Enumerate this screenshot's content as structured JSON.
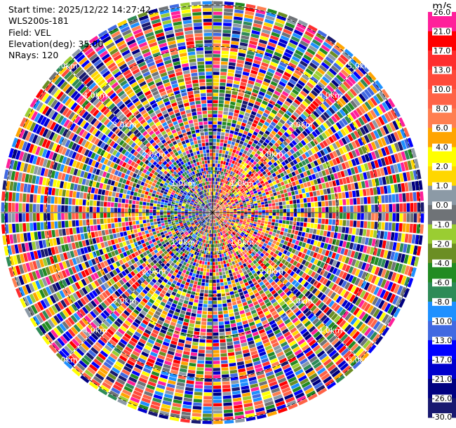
{
  "info": {
    "start_time": "Start time: 2025/12/22 14:27:42",
    "site": "WLS200s-181",
    "field": "Field: VEL",
    "elevation": "Elevation(deg): 35.00",
    "nrays": "NRays: 120"
  },
  "colorbar": {
    "unit": "m/s",
    "levels": [
      {
        "label": "26.0",
        "color": "#ff1f9a"
      },
      {
        "label": "21.0",
        "color": "#ff0000"
      },
      {
        "label": "17.0",
        "color": "#ff2e2e"
      },
      {
        "label": "13.0",
        "color": "#ff4a3a"
      },
      {
        "label": "10.0",
        "color": "#ff6347"
      },
      {
        "label": "8.0",
        "color": "#ff7f50"
      },
      {
        "label": "6.0",
        "color": "#ffa500"
      },
      {
        "label": "4.0",
        "color": "#ffff00"
      },
      {
        "label": "2.0",
        "color": "#ffd700"
      },
      {
        "label": "1.0",
        "color": "#8c9aa6"
      },
      {
        "label": "0.0",
        "color": "#6f7377"
      },
      {
        "label": "-1.0",
        "color": "#9acd32"
      },
      {
        "label": "-2.0",
        "color": "#6b8e23"
      },
      {
        "label": "-4.0",
        "color": "#228b22"
      },
      {
        "label": "-6.0",
        "color": "#2e8b57"
      },
      {
        "label": "-8.0",
        "color": "#1e90ff"
      },
      {
        "label": "-10.0",
        "color": "#4169e1"
      },
      {
        "label": "-13.0",
        "color": "#0000ff"
      },
      {
        "label": "-17.0",
        "color": "#0000cd"
      },
      {
        "label": "-21.0",
        "color": "#000080"
      },
      {
        "label": "-26.0",
        "color": "#191970"
      }
    ],
    "bottom_label": "-30.0"
  },
  "chart_data": {
    "type": "heatmap",
    "projection": "polar-ppi",
    "field": "VEL",
    "nrays": 120,
    "range_rings_km": [
      1,
      2,
      3,
      4,
      5
    ],
    "ring_labels": [
      "1.0km",
      "2.0km",
      "3.0km",
      "4.0km",
      "5.0km"
    ],
    "max_range_km": 5.1,
    "grid": true,
    "note_values": "velocity values appear noise-dominated; colors per colorbar"
  }
}
